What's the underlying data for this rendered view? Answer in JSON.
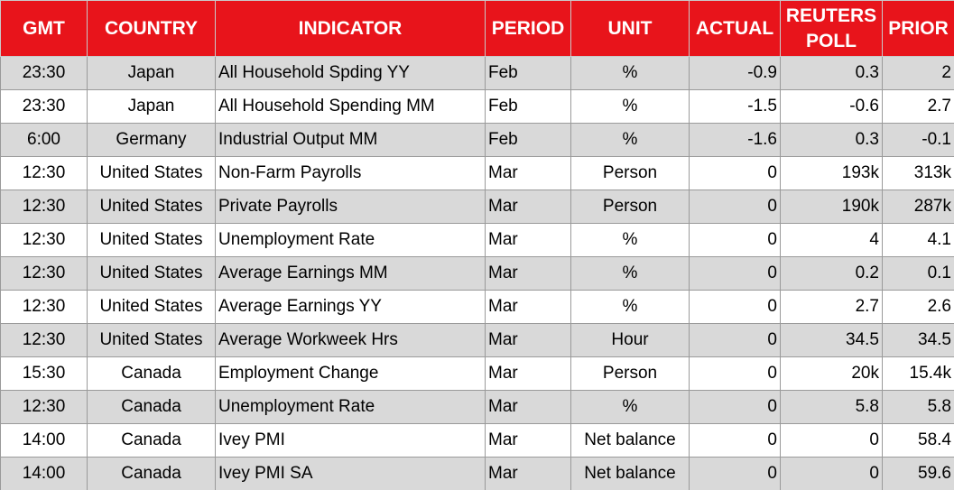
{
  "table": {
    "header": [
      "GMT",
      "COUNTRY",
      "INDICATOR",
      "PERIOD",
      "UNIT",
      "ACTUAL",
      "REUTERS POLL",
      "PRIOR"
    ],
    "rows": [
      [
        "23:30",
        "Japan",
        "All Household Spding YY",
        "Feb",
        "%",
        "-0.9",
        "0.3",
        "2"
      ],
      [
        "23:30",
        "Japan",
        "All Household Spending MM",
        "Feb",
        "%",
        "-1.5",
        "-0.6",
        "2.7"
      ],
      [
        "6:00",
        "Germany",
        "Industrial Output MM",
        "Feb",
        "%",
        "-1.6",
        "0.3",
        "-0.1"
      ],
      [
        "12:30",
        "United States",
        "Non-Farm Payrolls",
        "Mar",
        "Person",
        "0",
        "193k",
        "313k"
      ],
      [
        "12:30",
        "United States",
        "Private Payrolls",
        "Mar",
        "Person",
        "0",
        "190k",
        "287k"
      ],
      [
        "12:30",
        "United States",
        "Unemployment Rate",
        "Mar",
        "%",
        "0",
        "4",
        "4.1"
      ],
      [
        "12:30",
        "United States",
        "Average Earnings MM",
        "Mar",
        "%",
        "0",
        "0.2",
        "0.1"
      ],
      [
        "12:30",
        "United States",
        "Average Earnings YY",
        "Mar",
        "%",
        "0",
        "2.7",
        "2.6"
      ],
      [
        "12:30",
        "United States",
        "Average Workweek Hrs",
        "Mar",
        "Hour",
        "0",
        "34.5",
        "34.5"
      ],
      [
        "15:30",
        "Canada",
        "Employment Change",
        "Mar",
        "Person",
        "0",
        "20k",
        "15.4k"
      ],
      [
        "12:30",
        "Canada",
        "Unemployment Rate",
        "Mar",
        "%",
        "0",
        "5.8",
        "5.8"
      ],
      [
        "14:00",
        "Canada",
        "Ivey PMI",
        "Mar",
        "Net balance",
        "0",
        "0",
        "58.4"
      ],
      [
        "14:00",
        "Canada",
        "Ivey PMI SA",
        "Mar",
        "Net balance",
        "0",
        "0",
        "59.6"
      ]
    ]
  }
}
